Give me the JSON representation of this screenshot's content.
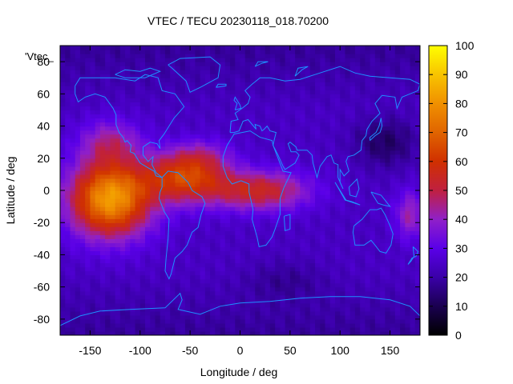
{
  "chart_data": {
    "type": "heatmap",
    "title": "VTEC / TECU 20230118_018.70200",
    "xlabel": "Longitude / deg",
    "ylabel": "Latitude / deg",
    "xlim": [
      -180,
      180
    ],
    "ylim": [
      -90,
      90
    ],
    "xticks": [
      -150,
      -100,
      -50,
      0,
      50,
      100,
      150
    ],
    "yticks": [
      -80,
      -60,
      -40,
      -20,
      0,
      20,
      40,
      60,
      80
    ],
    "colorbar": {
      "min": 0,
      "max": 100,
      "ticks": [
        0,
        10,
        20,
        30,
        40,
        50,
        60,
        70,
        80,
        90,
        100
      ],
      "colors": [
        "#000000",
        "#1a0050",
        "#3a00a8",
        "#5a00e8",
        "#9020c8",
        "#c02040",
        "#d03000",
        "#e06400",
        "#f09000",
        "#f8c400",
        "#ffff00"
      ]
    },
    "legend_label": "'Vtec_",
    "field": {
      "description_units": "TECU",
      "blobs": [
        {
          "lon": -130,
          "lat": -5,
          "slon": 40,
          "slat": 23,
          "amp": 58
        },
        {
          "lon": -55,
          "lat": 8,
          "slon": 42,
          "slat": 15,
          "amp": 38
        },
        {
          "lon": 20,
          "lat": 0,
          "slon": 48,
          "slat": 12,
          "amp": 30
        },
        {
          "lon": -40,
          "lat": 22,
          "slon": 30,
          "slat": 10,
          "amp": 12
        },
        {
          "lon": -130,
          "lat": 30,
          "slon": 30,
          "slat": 14,
          "amp": 18
        },
        {
          "lon": 170,
          "lat": -15,
          "slon": 15,
          "slat": 15,
          "amp": 18
        }
      ],
      "cold_spots": [
        {
          "lon": 145,
          "lat": 30,
          "slon": 30,
          "slat": 15,
          "amp": 12
        },
        {
          "lon": 45,
          "lat": -55,
          "slon": 40,
          "slat": 12,
          "amp": 6
        }
      ],
      "base": 24
    },
    "coastline_color": "#1e90ff"
  }
}
